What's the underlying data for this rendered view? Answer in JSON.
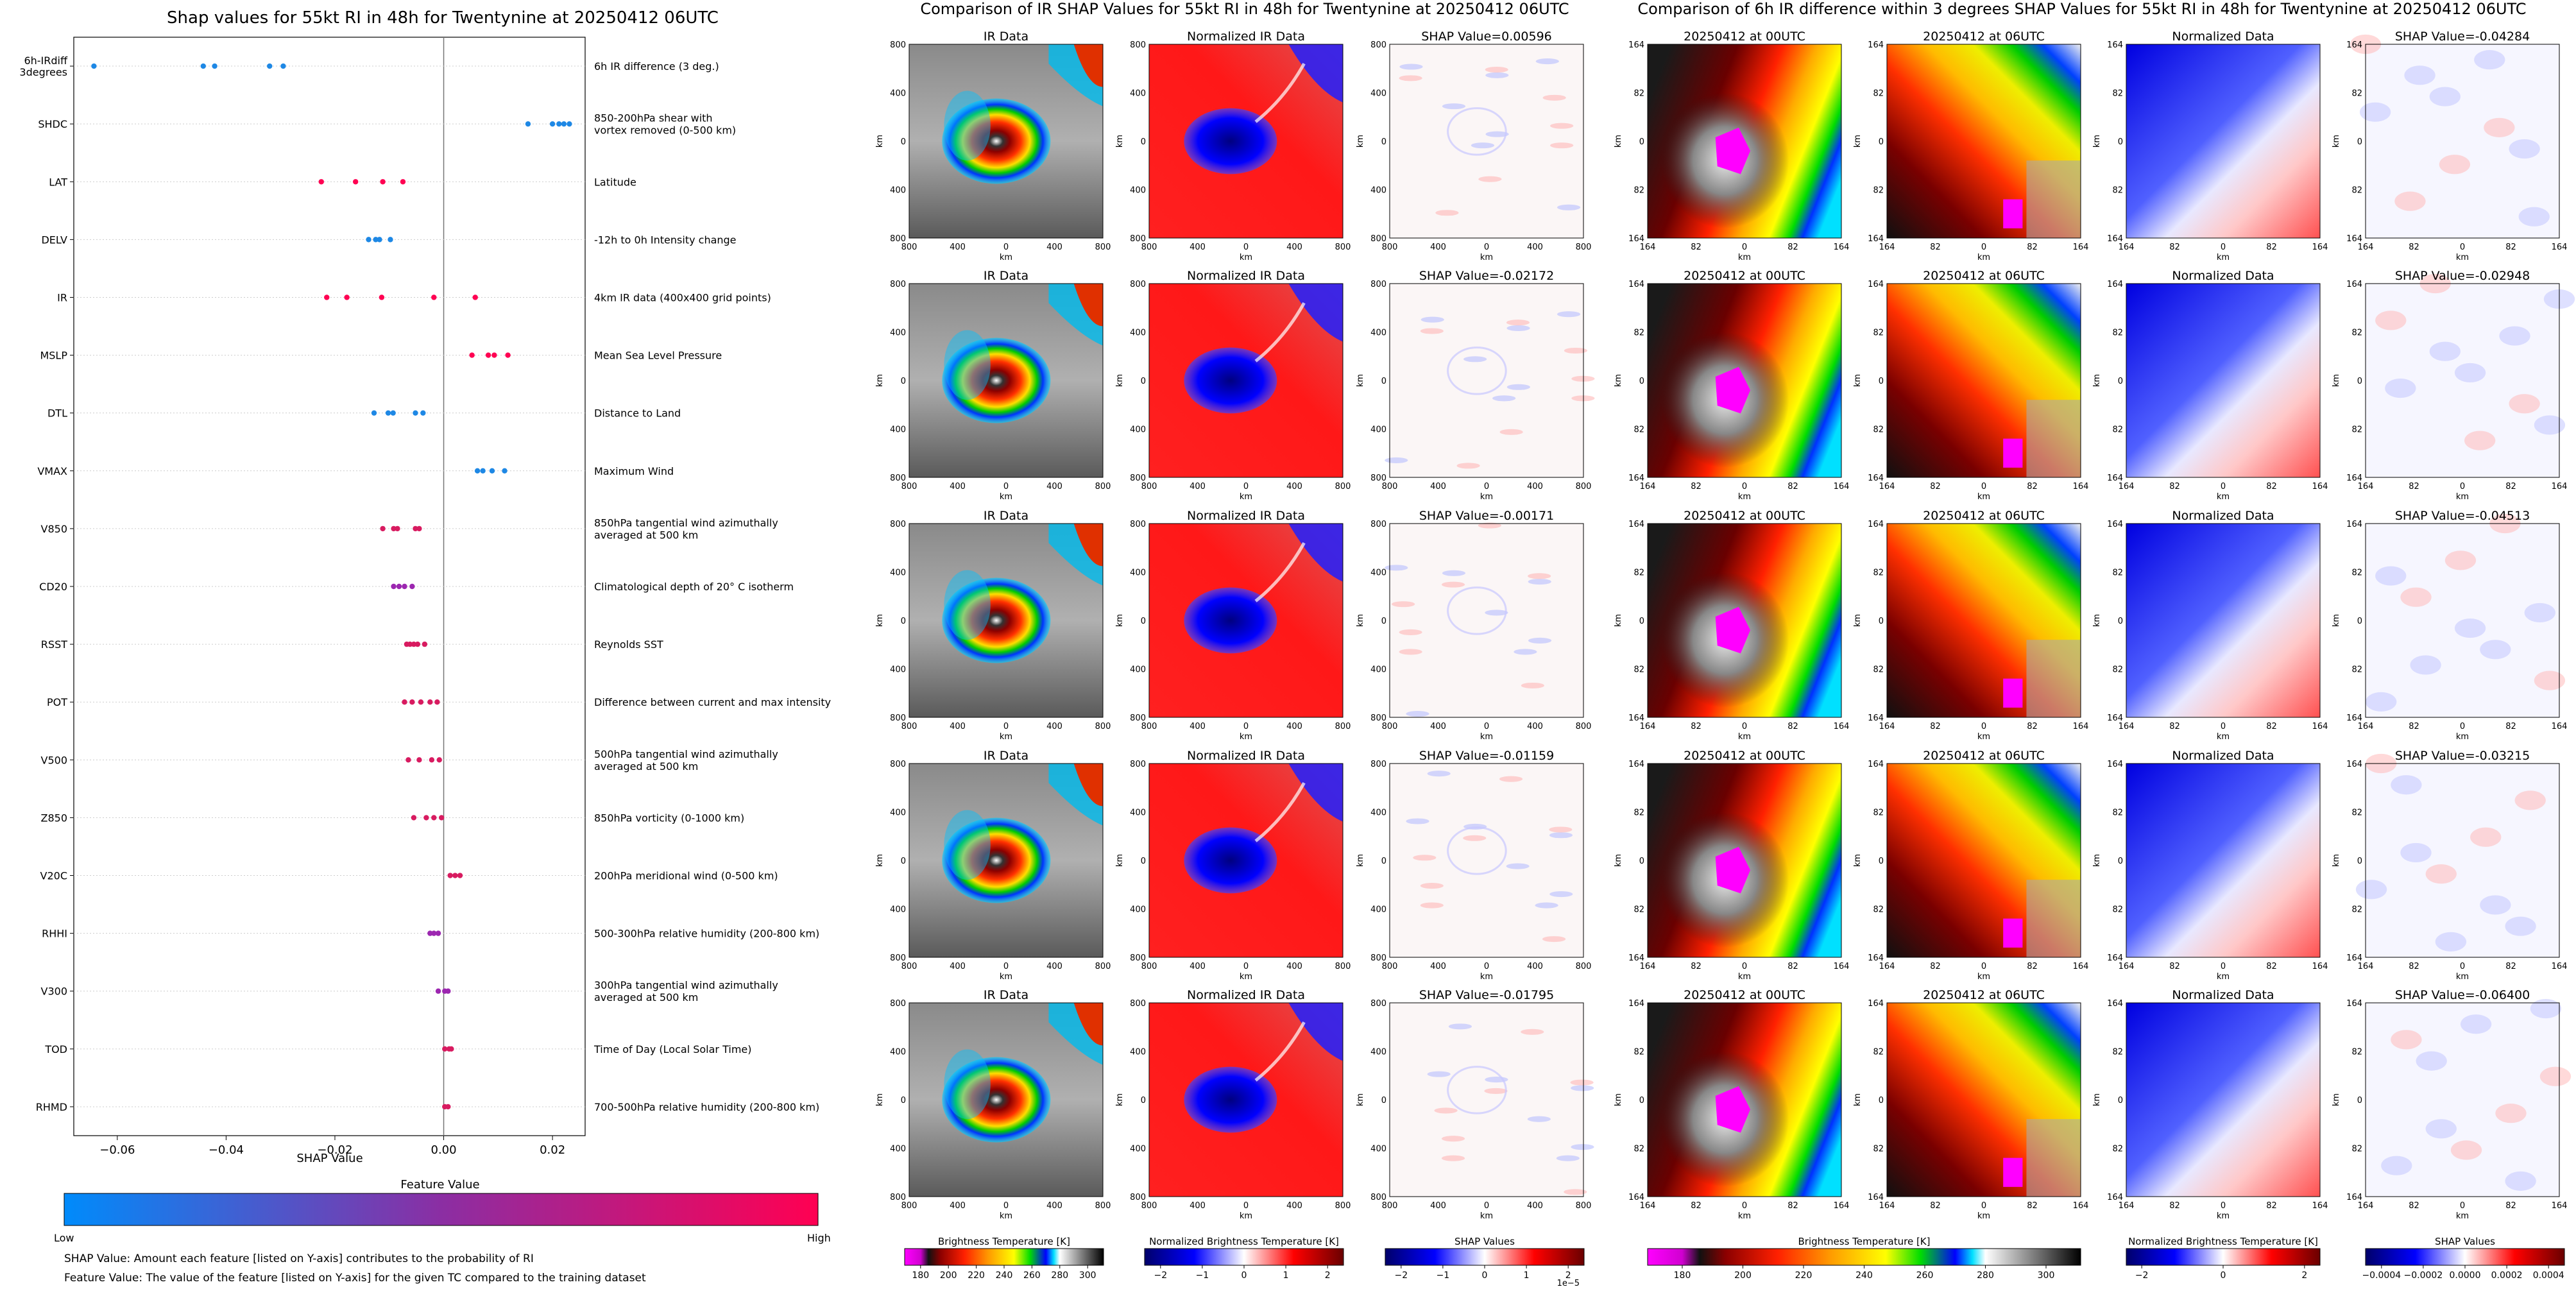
{
  "beeswarm": {
    "title": "Shap values for 55kt RI in 48h for Twentynine at 20250412 06UTC",
    "xlabel": "SHAP Value",
    "colorbar_title": "Feature Value",
    "colorbar_low": "Low",
    "colorbar_high": "High",
    "note1": "SHAP Value: Amount each feature [listed on Y-axis] contributes to the probability of RI",
    "note2": "Feature Value: The value of the feature [listed on Y-axis] for the given TC compared to the training dataset"
  },
  "panel2": {
    "title": "Comparison of IR SHAP Values for 55kt RI in 48h for Twentynine at 20250412 06UTC",
    "col_titles": [
      "IR Data",
      "Normalized IR Data"
    ],
    "shap_titles": [
      "SHAP Value=0.00596",
      "SHAP Value=-0.02172",
      "SHAP Value=-0.00171",
      "SHAP Value=-0.01159",
      "SHAP Value=-0.01795"
    ],
    "axis_label": "km",
    "ticks": [
      "800",
      "400",
      "0",
      "400",
      "800"
    ],
    "cb1_label": "Brightness Temperature [K]",
    "cb1_ticks": [
      "180",
      "200",
      "220",
      "240",
      "260",
      "280",
      "300"
    ],
    "cb2_label": "Normalized Brightness Temperature [K]",
    "cb2_ticks": [
      "−2",
      "−1",
      "0",
      "1",
      "2"
    ],
    "cb3_label": "SHAP Values",
    "cb3_ticks": [
      "−2",
      "−1",
      "0",
      "1",
      "2"
    ],
    "cb3_exp": "1e−5"
  },
  "panel3": {
    "title": "Comparison of 6h IR difference within 3 degrees SHAP Values for 55kt RI in 48h for Twentynine at 20250412 06UTC",
    "col_titles": [
      "20250412 at 00UTC",
      "20250412 at 06UTC",
      "Normalized Data"
    ],
    "shap_titles": [
      "SHAP Value=-0.04284",
      "SHAP Value=-0.02948",
      "SHAP Value=-0.04513",
      "SHAP Value=-0.03215",
      "SHAP Value=-0.06400"
    ],
    "axis_label": "km",
    "ticks": [
      "164",
      "82",
      "0",
      "82",
      "164"
    ],
    "cb1_label": "Brightness Temperature [K]",
    "cb1_ticks": [
      "180",
      "200",
      "220",
      "240",
      "260",
      "280",
      "300"
    ],
    "cb2_label": "Normalized Brightness Temperature [K]",
    "cb2_ticks": [
      "−2",
      "0",
      "2"
    ],
    "cb3_label": "SHAP Values",
    "cb3_ticks": [
      "−0.0004",
      "−0.0002",
      "0.0000",
      "0.0002",
      "0.0004"
    ]
  },
  "chart_data": [
    {
      "type": "scatter",
      "title": "Shap values for 55kt RI in 48h for Twentynine at 20250412 06UTC",
      "xlabel": "SHAP Value",
      "xlim": [
        -0.068,
        0.026
      ],
      "xticks": [
        "−0.06",
        "−0.04",
        "−0.02",
        "0.00",
        "0.02"
      ],
      "colors": {
        "low": "#1e88e5",
        "mid": "#9c27b0",
        "high": "#ff0052"
      },
      "features": [
        {
          "name": "6h-IRdiff\n3degrees",
          "desc": "6h IR difference (3 deg.)",
          "color": "#1e88e5",
          "values": [
            -0.0643,
            -0.0442,
            -0.0421,
            -0.032,
            -0.0295
          ]
        },
        {
          "name": "SHDC",
          "desc": "850-200hPa shear with\nvortex removed (0-500 km)",
          "color": "#1e88e5",
          "values": [
            0.0155,
            0.02,
            0.0212,
            0.0221,
            0.0231
          ]
        },
        {
          "name": "LAT",
          "desc": "Latitude",
          "color": "#ff0052",
          "values": [
            -0.0225,
            -0.0162,
            -0.0112,
            -0.0075
          ]
        },
        {
          "name": "DELV",
          "desc": "-12h to 0h Intensity change",
          "color": "#1e88e5",
          "values": [
            -0.0138,
            -0.0125,
            -0.0118,
            -0.0098
          ]
        },
        {
          "name": "IR",
          "desc": "4km IR data (400x400 grid points)",
          "color": "#ff0052",
          "values": [
            -0.0215,
            -0.0178,
            -0.0114,
            -0.0018,
            0.0058
          ]
        },
        {
          "name": "MSLP",
          "desc": "Mean Sea Level Pressure",
          "color": "#ff0052",
          "values": [
            0.0052,
            0.0082,
            0.0093,
            0.0118
          ]
        },
        {
          "name": "DTL",
          "desc": "Distance to Land",
          "color": "#1e88e5",
          "values": [
            -0.0128,
            -0.0102,
            -0.0093,
            -0.0052,
            -0.0038
          ]
        },
        {
          "name": "VMAX",
          "desc": "Maximum Wind",
          "color": "#1e88e5",
          "values": [
            0.0062,
            0.0072,
            0.0089,
            0.0112
          ]
        },
        {
          "name": "V850",
          "desc": "850hPa tangential wind azimuthally\naveraged at 500 km",
          "color": "#d81b60",
          "values": [
            -0.0112,
            -0.0092,
            -0.0085,
            -0.0052,
            -0.0045
          ]
        },
        {
          "name": "CD20",
          "desc": "Climatological depth of 20° C isotherm",
          "color": "#9c27b0",
          "values": [
            -0.0092,
            -0.0082,
            -0.0072,
            -0.0058
          ]
        },
        {
          "name": "RSST",
          "desc": "Reynolds SST",
          "color": "#d81b60",
          "values": [
            -0.0068,
            -0.0062,
            -0.0055,
            -0.0048,
            -0.0035
          ]
        },
        {
          "name": "POT",
          "desc": "Difference between current and max intensity",
          "color": "#d81b60",
          "values": [
            -0.0072,
            -0.0058,
            -0.0042,
            -0.0025,
            -0.0012
          ]
        },
        {
          "name": "V500",
          "desc": "500hPa tangential wind azimuthally\naveraged at 500 km",
          "color": "#d81b60",
          "values": [
            -0.0065,
            -0.0045,
            -0.0022,
            -0.0008
          ]
        },
        {
          "name": "Z850",
          "desc": "850hPa vorticity (0-1000 km)",
          "color": "#d81b60",
          "values": [
            -0.0055,
            -0.0032,
            -0.0018,
            -0.0004
          ]
        },
        {
          "name": "V20C",
          "desc": "200hPa meridional wind (0-500 km)",
          "color": "#d81b60",
          "values": [
            0.0012,
            0.0021,
            0.003
          ]
        },
        {
          "name": "RHHI",
          "desc": "500-300hPa relative humidity (200-800 km)",
          "color": "#9c27b0",
          "values": [
            -0.0025,
            -0.0018,
            -0.001
          ]
        },
        {
          "name": "V300",
          "desc": "300hPa tangential wind azimuthally\naveraged at 500 km",
          "color": "#9c27b0",
          "values": [
            -0.001,
            0.0002,
            0.0008
          ]
        },
        {
          "name": "TOD",
          "desc": "Time of Day (Local Solar Time)",
          "color": "#d81b60",
          "values": [
            0.0002,
            0.001,
            0.0014
          ]
        },
        {
          "name": "RHMD",
          "desc": "700-500hPa relative humidity (200-800 km)",
          "color": "#d81b60",
          "values": [
            0.0002,
            0.0008
          ]
        }
      ]
    }
  ]
}
